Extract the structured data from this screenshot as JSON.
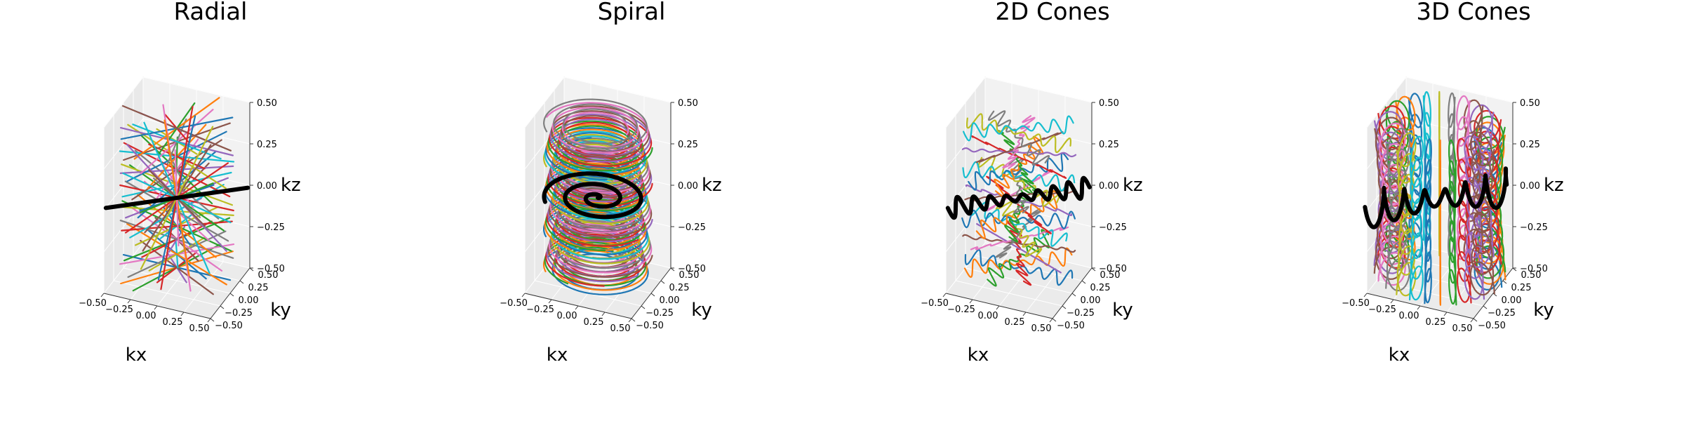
{
  "figure": {
    "background": "#ffffff"
  },
  "colors": [
    "#1f77b4",
    "#ff7f0e",
    "#2ca02c",
    "#d62728",
    "#9467bd",
    "#8c564b",
    "#e377c2",
    "#7f7f7f",
    "#bcbd22",
    "#17becf"
  ],
  "highlight_color": "#000000",
  "chart_data": [
    {
      "type": "3d-line",
      "title": "Radial",
      "trajectory": "radial",
      "xlabel": "kx",
      "ylabel": "ky",
      "zlabel": "kz",
      "xlim": [
        -0.5,
        0.5
      ],
      "ylim": [
        -0.5,
        0.5
      ],
      "zlim": [
        -0.5,
        0.5
      ],
      "xticks": [
        "−0.50",
        "−0.25",
        "0.00",
        "0.25",
        "0.50"
      ],
      "yticks": [
        "−0.50",
        "−0.25",
        "0.00",
        "0.25",
        "0.50"
      ],
      "zticks": [
        "−0.50",
        "−0.25",
        "0.00",
        "0.25",
        "0.50"
      ],
      "grid": true,
      "highlighted_trajectory": "first spoke, drawn in black"
    },
    {
      "type": "3d-line",
      "title": "Spiral",
      "trajectory": "spiral",
      "xlabel": "kx",
      "ylabel": "ky",
      "zlabel": "kz",
      "xlim": [
        -0.5,
        0.5
      ],
      "ylim": [
        -0.5,
        0.5
      ],
      "zlim": [
        -0.5,
        0.5
      ],
      "xticks": [
        "−0.50",
        "−0.25",
        "0.00",
        "0.25",
        "0.50"
      ],
      "yticks": [
        "−0.50",
        "−0.25",
        "0.00",
        "0.25",
        "0.50"
      ],
      "zticks": [
        "−0.50",
        "−0.25",
        "0.00",
        "0.25",
        "0.50"
      ],
      "grid": true,
      "highlighted_trajectory": "mid-plane spiral, drawn in black"
    },
    {
      "type": "3d-line",
      "title": "2D Cones",
      "trajectory": "cones2d",
      "xlabel": "kx",
      "ylabel": "ky",
      "zlabel": "kz",
      "xlim": [
        -0.5,
        0.5
      ],
      "ylim": [
        -0.5,
        0.5
      ],
      "zlim": [
        -0.5,
        0.5
      ],
      "xticks": [
        "−0.50",
        "−0.25",
        "0.00",
        "0.25",
        "0.50"
      ],
      "yticks": [
        "−0.50",
        "−0.25",
        "0.00",
        "0.25",
        "0.50"
      ],
      "zticks": [
        "−0.50",
        "−0.25",
        "0.00",
        "0.25",
        "0.50"
      ],
      "grid": true,
      "highlighted_trajectory": "mid-plane zig-zag, drawn in black"
    },
    {
      "type": "3d-line",
      "title": "3D Cones",
      "trajectory": "cones3d",
      "xlabel": "kx",
      "ylabel": "ky",
      "zlabel": "kz",
      "xlim": [
        -0.5,
        0.5
      ],
      "ylim": [
        -0.5,
        0.5
      ],
      "zlim": [
        -0.5,
        0.5
      ],
      "xticks": [
        "−0.50",
        "−0.25",
        "0.00",
        "0.25",
        "0.50"
      ],
      "yticks": [
        "−0.50",
        "−0.25",
        "0.00",
        "0.25",
        "0.50"
      ],
      "zticks": [
        "−0.50",
        "−0.25",
        "0.00",
        "0.25",
        "0.50"
      ],
      "grid": true,
      "highlighted_trajectory": "mid-plane looping cone, drawn in black"
    }
  ]
}
